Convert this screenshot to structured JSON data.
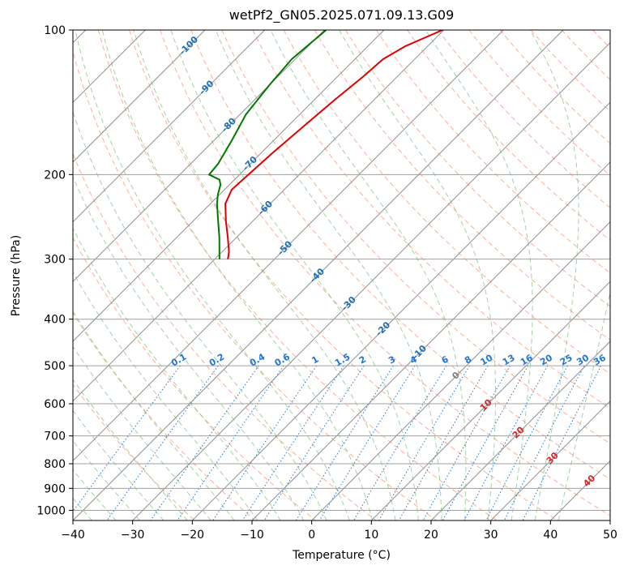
{
  "chart_data": {
    "type": "line",
    "title": "wetPf2_GN05.2025.071.09.13.G09",
    "xlabel": "Temperature (°C)",
    "ylabel": "Pressure (hPa)",
    "xlim": [
      -40,
      50
    ],
    "ylim": [
      1050,
      100
    ],
    "y_scale": "log",
    "x_ticks": [
      -40,
      -30,
      -20,
      -10,
      0,
      10,
      20,
      30,
      40,
      50
    ],
    "y_ticks": [
      1000,
      900,
      800,
      700,
      600,
      500,
      400,
      300,
      200,
      100
    ],
    "grid": true,
    "skew": 45,
    "series": [
      {
        "color": "#e00000",
        "pressure": [
          100,
          108,
          115,
          125,
          140,
          160,
          180,
          200,
          215,
          230,
          250,
          270,
          290,
          300
        ],
        "temperature": [
          -60.2,
          -63.7,
          -65.3,
          -65.7,
          -66.6,
          -67.4,
          -68.1,
          -68.5,
          -68.8,
          -67.5,
          -64.5,
          -61.5,
          -58.8,
          -57.8
        ]
      },
      {
        "color": "#007800",
        "pressure": [
          100,
          115,
          130,
          150,
          170,
          190,
          200,
          205,
          210,
          220,
          230,
          250,
          270,
          290,
          300
        ],
        "temperature": [
          -79.7,
          -80.6,
          -80.0,
          -79.0,
          -77.0,
          -75.4,
          -75.1,
          -72.5,
          -71.5,
          -70.3,
          -68.9,
          -65.8,
          -62.9,
          -60.4,
          -59.2
        ]
      }
    ],
    "mixing_ratio_labels": [
      "0.1",
      "0.2",
      "0.4",
      "0.6",
      "1",
      "1.5",
      "2",
      "3",
      "4",
      "6",
      "8",
      "10",
      "13",
      "16",
      "20",
      "25",
      "30",
      "36"
    ],
    "mixing_ratio_values": [
      0.1,
      0.2,
      0.4,
      0.6,
      1,
      1.5,
      2,
      3,
      4,
      6,
      8,
      10,
      13,
      16,
      20,
      25,
      30,
      36
    ],
    "isotherm_labels_blue": [
      "-100",
      "-90",
      "-80",
      "-70",
      "-60",
      "-50",
      "-40",
      "-30",
      "-20",
      "-10"
    ],
    "isotherm_labels_red": [
      "0",
      "10",
      "20",
      "30",
      "40"
    ],
    "colors": {
      "dry_adiabat": "#ff8c69",
      "moist_adiabat": "#7dbf7d",
      "mixing_ratio": "#1f77d4",
      "isotherm": "#909090",
      "isobar": "#a0a0a0",
      "label_blue": "#1f6fb4",
      "label_red": "#d62728"
    }
  }
}
